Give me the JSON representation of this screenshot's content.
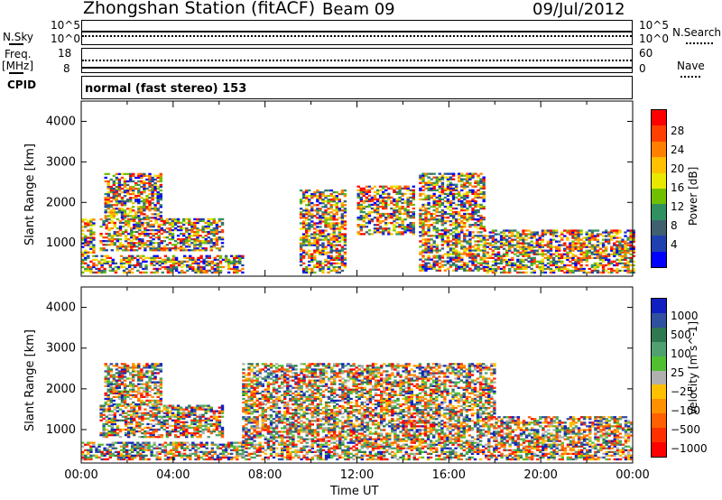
{
  "header": {
    "station": "Zhongshan Station (fitACF)",
    "beam": "Beam 09",
    "date": "09/Jul/2012",
    "mode": "normal (fast stereo) 153"
  },
  "left_labels": {
    "nsky": "N.Sky",
    "freq_line1": "Freq.",
    "freq_line2": "[MHz]",
    "cpid": "CPID"
  },
  "right_labels": {
    "nsearch": "N.Search",
    "nave": "Nave"
  },
  "small_axes": {
    "nsky_top": "10^5",
    "nsky_bottom": "10^0",
    "nsearch_top": "10^5",
    "nsearch_bottom": "10^0",
    "freq_top": "18",
    "freq_bottom": "8",
    "nave_top": "60",
    "nave_bottom": "0"
  },
  "chart_data": [
    {
      "type": "heatmap",
      "panel": "power",
      "ylabel": "Slant Range [km]",
      "yticks": [
        "4000",
        "3000",
        "2000",
        "1000"
      ],
      "ylim": [
        180,
        4500
      ],
      "xlim_hours": [
        0,
        24
      ],
      "colorbar_label": "Power [dB]",
      "colorbar_ticks": [
        "28",
        "24",
        "20",
        "16",
        "12",
        "8",
        "4"
      ],
      "colors": [
        "#ff0000",
        "#ff4000",
        "#ff8000",
        "#ffc000",
        "#e8e800",
        "#70c000",
        "#309060",
        "#406070",
        "#2040b0",
        "#0000ff"
      ],
      "echo_regions": [
        {
          "t_start": 0.0,
          "t_end": 0.6,
          "r_start": 250,
          "r_end": 1600
        },
        {
          "t_start": 0.6,
          "t_end": 7.0,
          "r_start": 250,
          "r_end": 700
        },
        {
          "t_start": 0.8,
          "t_end": 6.2,
          "r_start": 800,
          "r_end": 1600
        },
        {
          "t_start": 1.0,
          "t_end": 3.5,
          "r_start": 1600,
          "r_end": 2700
        },
        {
          "t_start": 9.5,
          "t_end": 11.5,
          "r_start": 250,
          "r_end": 2300
        },
        {
          "t_start": 12.0,
          "t_end": 14.5,
          "r_start": 1200,
          "r_end": 2400
        },
        {
          "t_start": 14.7,
          "t_end": 17.5,
          "r_start": 300,
          "r_end": 2700
        },
        {
          "t_start": 17.5,
          "t_end": 24.0,
          "r_start": 250,
          "r_end": 1300
        }
      ]
    },
    {
      "type": "heatmap",
      "panel": "velocity",
      "ylabel": "Slant Range [km]",
      "xlabel": "Time UT",
      "yticks": [
        "4000",
        "3000",
        "2000",
        "1000"
      ],
      "ylim": [
        180,
        4500
      ],
      "xlim_hours": [
        0,
        24
      ],
      "xticks": [
        "00:00",
        "04:00",
        "08:00",
        "12:00",
        "16:00",
        "20:00",
        "00:00"
      ],
      "colorbar_label": "Velocity [m s^-1]",
      "colorbar_ticks": [
        "1000",
        "500",
        "100",
        "25",
        "−25",
        "−100",
        "−500",
        "−1000"
      ],
      "colors": [
        "#1020c0",
        "#3050a0",
        "#307850",
        "#50a070",
        "#50c030",
        "#b0b0b0",
        "#ffc000",
        "#ff9000",
        "#ff6000",
        "#ff3000",
        "#ff0000"
      ],
      "echo_regions": [
        {
          "t_start": 0.0,
          "t_end": 7.0,
          "r_start": 250,
          "r_end": 700
        },
        {
          "t_start": 0.8,
          "t_end": 6.2,
          "r_start": 800,
          "r_end": 1600
        },
        {
          "t_start": 1.0,
          "t_end": 3.5,
          "r_start": 1600,
          "r_end": 2600
        },
        {
          "t_start": 7.0,
          "t_end": 18.0,
          "r_start": 250,
          "r_end": 2600
        },
        {
          "t_start": 18.0,
          "t_end": 24.0,
          "r_start": 250,
          "r_end": 1300
        }
      ]
    }
  ]
}
